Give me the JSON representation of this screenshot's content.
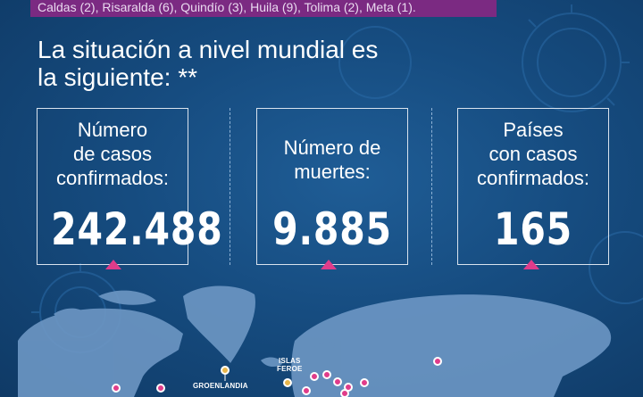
{
  "top_strip": {
    "text": "Caldas (2), Risaralda (6), Quindío (3), Huila (9), Tolima (2), Meta (1)."
  },
  "headline": {
    "line1": "La situación a nivel mundial es",
    "line2": "la siguiente: **"
  },
  "stats": [
    {
      "label": "Número\nde casos\nconfirmados:",
      "value": "242.488"
    },
    {
      "label": "Número de\nmuertes:",
      "value": "9.885"
    },
    {
      "label": "Países\ncon casos\nconfirmados:",
      "value": "165"
    }
  ],
  "map": {
    "labels": {
      "groenlandia": "GROENLANDIA",
      "islas_feroe_1": "ISLAS",
      "islas_feroe_2": "FEROE"
    },
    "colors": {
      "land": "#6d97c4",
      "marker_pink": "#e03c8a",
      "marker_gold": "#e8b64c"
    }
  },
  "colors": {
    "background": "#164c80",
    "strip": "#7b2a82",
    "accent": "#e03c8a"
  }
}
